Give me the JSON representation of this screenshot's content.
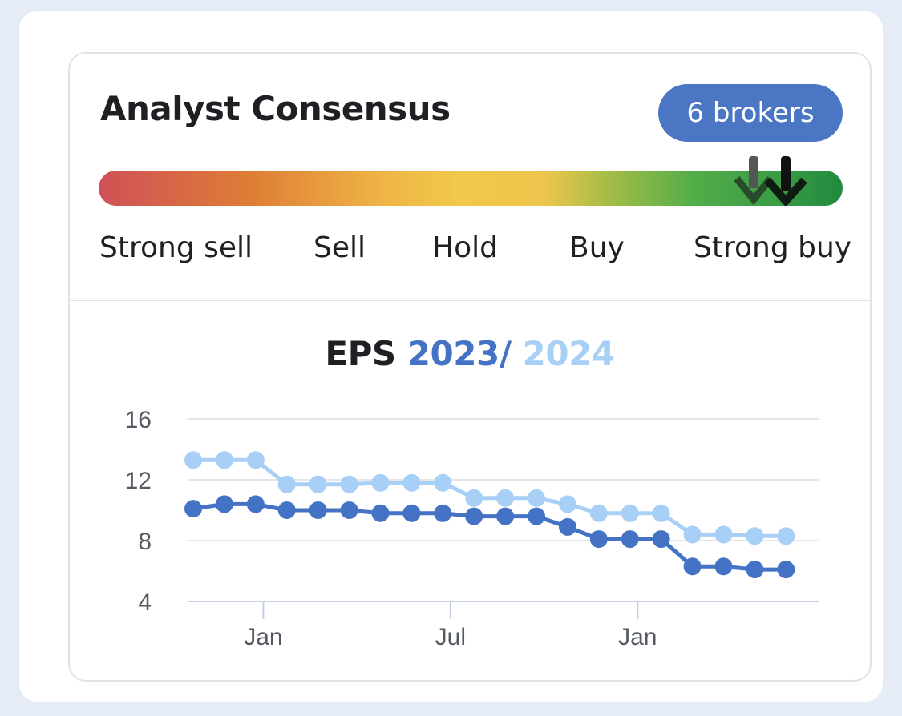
{
  "consensus": {
    "title": "Analyst Consensus",
    "brokers_label": "6 brokers",
    "scale_labels": [
      "Strong sell",
      "Sell",
      "Hold",
      "Buy",
      "Strong buy"
    ],
    "markers": [
      {
        "position": 0.885,
        "color": "#555555"
      },
      {
        "position": 0.925,
        "color": "#111111"
      }
    ]
  },
  "colors": {
    "series_2023": "#4472c4",
    "series_2024": "#a8cff5",
    "title_dark": "#1f2023"
  },
  "chart_data": {
    "type": "line",
    "title_prefix": "EPS",
    "title_series_1": "2023",
    "title_sep": "/",
    "title_series_2": "2024",
    "x_tick_labels": [
      "Jan",
      "Jul",
      "Jan"
    ],
    "x_tick_index": [
      2.4,
      8.4,
      14.4
    ],
    "y_ticks": [
      4,
      8,
      12,
      16
    ],
    "ylim": [
      4,
      16
    ],
    "grid": true,
    "x_index": [
      0,
      1,
      2,
      3,
      4,
      5,
      6,
      7,
      8,
      9,
      10,
      11,
      12,
      13,
      14,
      15,
      16,
      17,
      18,
      19
    ],
    "series": [
      {
        "name": "2023",
        "values": [
          10.1,
          10.4,
          10.4,
          10.0,
          10.0,
          10.0,
          9.8,
          9.8,
          9.8,
          9.6,
          9.6,
          9.6,
          8.9,
          8.1,
          8.1,
          8.1,
          6.3,
          6.3,
          6.1,
          6.1
        ]
      },
      {
        "name": "2024",
        "values": [
          13.3,
          13.3,
          13.3,
          11.7,
          11.7,
          11.7,
          11.8,
          11.8,
          11.8,
          10.8,
          10.8,
          10.8,
          10.4,
          9.8,
          9.8,
          9.8,
          8.4,
          8.4,
          8.3,
          8.3
        ]
      }
    ]
  }
}
